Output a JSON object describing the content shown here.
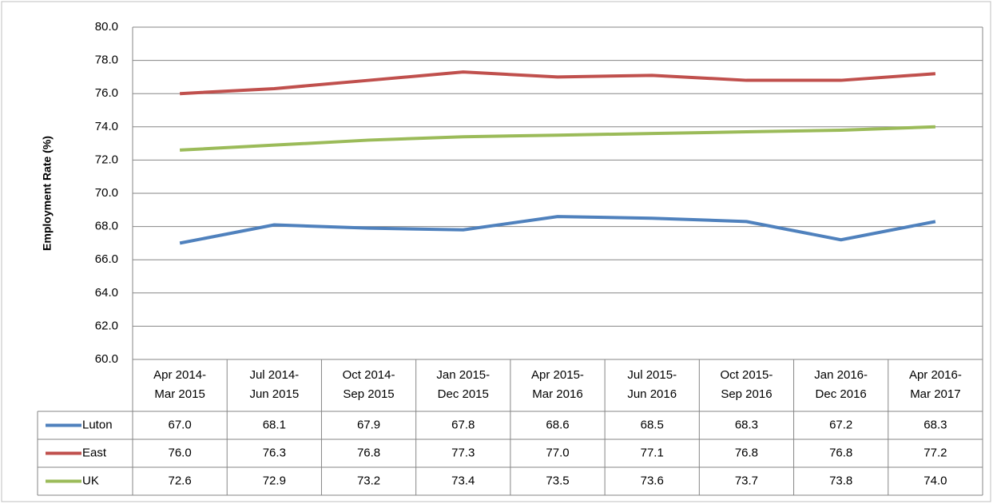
{
  "chart_data": {
    "type": "line",
    "y_label": "Employment Rate (%)",
    "categories": [
      "Apr 2014-\nMar 2015",
      "Jul 2014-\nJun 2015",
      "Oct 2014-\nSep 2015",
      "Jan 2015-\nDec 2015",
      "Apr 2015-\nMar 2016",
      "Jul 2015-\nJun 2016",
      "Oct 2015-\nSep 2016",
      "Jan 2016-\nDec 2016",
      "Apr 2016-\nMar 2017"
    ],
    "series": [
      {
        "name": "Luton",
        "color": "#4f81bd",
        "values": [
          67.0,
          68.1,
          67.9,
          67.8,
          68.6,
          68.5,
          68.3,
          67.2,
          68.3
        ],
        "value_labels": [
          "67.0",
          "68.1",
          "67.9",
          "67.8",
          "68.6",
          "68.5",
          "68.3",
          "67.2",
          "68.3"
        ]
      },
      {
        "name": "East",
        "color": "#c0504d",
        "values": [
          76.0,
          76.3,
          76.8,
          77.3,
          77.0,
          77.1,
          76.8,
          76.8,
          77.2
        ],
        "value_labels": [
          "76.0",
          "76.3",
          "76.8",
          "77.3",
          "77.0",
          "77.1",
          "76.8",
          "76.8",
          "77.2"
        ]
      },
      {
        "name": "UK",
        "color": "#9bbb59",
        "values": [
          72.6,
          72.9,
          73.2,
          73.4,
          73.5,
          73.6,
          73.7,
          73.8,
          74.0
        ],
        "value_labels": [
          "72.6",
          "72.9",
          "73.2",
          "73.4",
          "73.5",
          "73.6",
          "73.7",
          "73.8",
          "74.0"
        ]
      }
    ],
    "ylim": [
      60,
      80
    ],
    "yticks": [
      {
        "value": 60,
        "label": "60.0"
      },
      {
        "value": 62,
        "label": "62.0"
      },
      {
        "value": 64,
        "label": "64.0"
      },
      {
        "value": 66,
        "label": "66.0"
      },
      {
        "value": 68,
        "label": "68.0"
      },
      {
        "value": 70,
        "label": "70.0"
      },
      {
        "value": 72,
        "label": "72.0"
      },
      {
        "value": 74,
        "label": "74.0"
      },
      {
        "value": 76,
        "label": "76.0"
      },
      {
        "value": 78,
        "label": "78.0"
      },
      {
        "value": 80,
        "label": "80.0"
      }
    ],
    "grid": true
  }
}
